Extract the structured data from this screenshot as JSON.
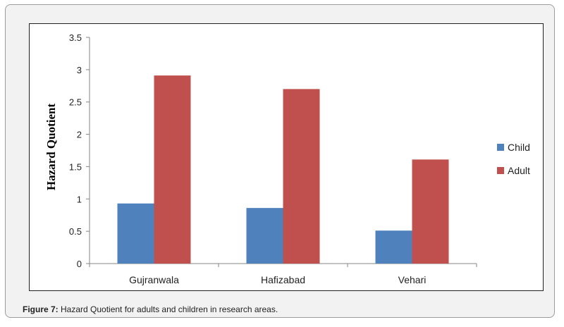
{
  "figure": {
    "caption_label": "Figure 7:",
    "caption_text": " Hazard Quotient for adults and children in research areas."
  },
  "chart_data": {
    "type": "bar",
    "categories": [
      "Gujranwala",
      "Hafizabad",
      "Vehari"
    ],
    "series": [
      {
        "name": "Child",
        "color": "#4f81bd",
        "values": [
          0.93,
          0.86,
          0.51
        ]
      },
      {
        "name": "Adult",
        "color": "#c0504d",
        "values": [
          2.91,
          2.7,
          1.61
        ]
      }
    ],
    "ylabel": "Hazard Quotient",
    "xlabel": "",
    "ylim": [
      0,
      3.5
    ],
    "yticks": [
      "0",
      "0.5",
      "1",
      "1.5",
      "2",
      "2.5",
      "3",
      "3.5"
    ],
    "grid": false,
    "legend": "right"
  }
}
